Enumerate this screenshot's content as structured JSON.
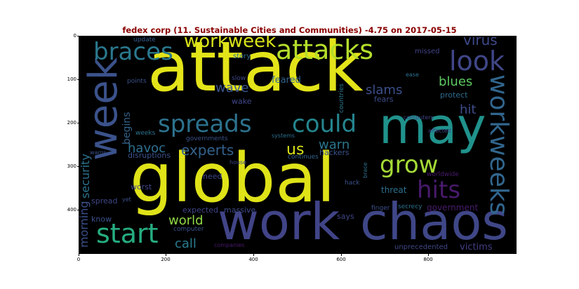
{
  "title": "fedex corp (11. Sustainable Cities and Communities) -4.75 on 2017-05-15",
  "axes": {
    "y_ticks": [
      "0",
      "100",
      "200",
      "300",
      "400"
    ],
    "x_ticks": [
      "0",
      "200",
      "400",
      "600",
      "800"
    ]
  },
  "words": [
    {
      "id": "attack",
      "text": "attack",
      "color": "#e3e419",
      "size": 98,
      "x": 210,
      "y": 47
    },
    {
      "id": "global",
      "text": "global",
      "color": "#dfe318",
      "size": 96,
      "x": 185,
      "y": 206
    },
    {
      "id": "may",
      "text": "may",
      "color": "#20928c",
      "size": 70,
      "x": 540,
      "y": 145
    },
    {
      "id": "chaos",
      "text": "chaos",
      "color": "#3f4788",
      "size": 72,
      "x": 513,
      "y": 280
    },
    {
      "id": "work",
      "text": "work",
      "color": "#414487",
      "size": 72,
      "x": 310,
      "y": 280
    },
    {
      "id": "week",
      "text": "week",
      "color": "#3b528b",
      "size": 56,
      "x": 120,
      "y": 95,
      "rot": -90
    },
    {
      "id": "attacks",
      "text": "attacks",
      "color": "#b5de2b",
      "size": 38,
      "x": 393,
      "y": 52
    },
    {
      "id": "braces",
      "text": "braces",
      "color": "#2a788e",
      "size": 34,
      "x": 133,
      "y": 57
    },
    {
      "id": "workweek",
      "text": "workweek",
      "color": "#d8e219",
      "size": 26,
      "x": 262,
      "y": 46
    },
    {
      "id": "look",
      "text": "look",
      "color": "#404688",
      "size": 38,
      "x": 640,
      "y": 68
    },
    {
      "id": "spreads",
      "text": "spreads",
      "color": "#2c728e",
      "size": 34,
      "x": 225,
      "y": 160
    },
    {
      "id": "could",
      "text": "could",
      "color": "#25858e",
      "size": 34,
      "x": 416,
      "y": 160
    },
    {
      "id": "workweeks",
      "text": "workweeks",
      "color": "#31668e",
      "size": 36,
      "x": 692,
      "y": 106,
      "rot": 90
    },
    {
      "id": "grow",
      "text": "grow",
      "color": "#a5db36",
      "size": 34,
      "x": 541,
      "y": 218
    },
    {
      "id": "hits",
      "text": "hits",
      "color": "#481a6c",
      "size": 34,
      "x": 594,
      "y": 254
    },
    {
      "id": "start",
      "text": "start",
      "color": "#26ad81",
      "size": 38,
      "x": 137,
      "y": 314
    },
    {
      "id": "virus",
      "text": "virus",
      "color": "#3e4a89",
      "size": 20,
      "x": 660,
      "y": 47
    },
    {
      "id": "blues",
      "text": "blues",
      "color": "#5ec962",
      "size": 18,
      "x": 625,
      "y": 108
    },
    {
      "id": "hit",
      "text": "hit",
      "color": "#3e4c8a",
      "size": 18,
      "x": 655,
      "y": 148
    },
    {
      "id": "wave",
      "text": "wave",
      "color": "#3a548c",
      "size": 18,
      "x": 307,
      "y": 117
    },
    {
      "id": "feared",
      "text": "feared",
      "color": "#32658e",
      "size": 13,
      "x": 387,
      "y": 108
    },
    {
      "id": "slams",
      "text": "slams",
      "color": "#3c4f8a",
      "size": 18,
      "x": 521,
      "y": 120
    },
    {
      "id": "protect",
      "text": "protect",
      "color": "#2f6b8e",
      "size": 11,
      "x": 627,
      "y": 130
    },
    {
      "id": "fears",
      "text": "fears",
      "color": "#3d4d8a",
      "size": 11,
      "x": 533,
      "y": 136
    },
    {
      "id": "experts",
      "text": "experts",
      "color": "#33628d",
      "size": 20,
      "x": 258,
      "y": 204
    },
    {
      "id": "us",
      "text": "us",
      "color": "#dae319",
      "size": 22,
      "x": 408,
      "y": 203
    },
    {
      "id": "warn",
      "text": "warn",
      "color": "#2b758e",
      "size": 18,
      "x": 454,
      "y": 198
    },
    {
      "id": "havoc",
      "text": "havoc",
      "color": "#2d708e",
      "size": 18,
      "x": 182,
      "y": 203
    },
    {
      "id": "hackers",
      "text": "hackers",
      "color": "#3a538b",
      "size": 11,
      "x": 455,
      "y": 212
    },
    {
      "id": "world",
      "text": "world",
      "color": "#8fd744",
      "size": 18,
      "x": 240,
      "y": 306
    },
    {
      "id": "call",
      "text": "call",
      "color": "#297b8e",
      "size": 18,
      "x": 249,
      "y": 339
    },
    {
      "id": "threat",
      "text": "threat",
      "color": "#2d708e",
      "size": 12,
      "x": 543,
      "y": 265
    },
    {
      "id": "government",
      "text": "government",
      "color": "#481b6d",
      "size": 12,
      "x": 608,
      "y": 290
    },
    {
      "id": "victims",
      "text": "victims",
      "color": "#433e85",
      "size": 13,
      "x": 655,
      "y": 346
    },
    {
      "id": "unprecedented",
      "text": "unprecedented",
      "color": "#3f4788",
      "size": 10,
      "x": 562,
      "y": 348
    },
    {
      "id": "security",
      "text": "security",
      "color": "#2c738e",
      "size": 16,
      "x": 114,
      "y": 206,
      "rot": -90
    },
    {
      "id": "morning",
      "text": "morning",
      "color": "#3b518b",
      "size": 16,
      "x": 112,
      "y": 286,
      "rot": -90
    },
    {
      "id": "begins",
      "text": "begins",
      "color": "#33638d",
      "size": 14,
      "x": 174,
      "y": 156,
      "rot": -90
    },
    {
      "id": "wake",
      "text": "wake",
      "color": "#3f4889",
      "size": 11,
      "x": 330,
      "y": 139
    },
    {
      "id": "story",
      "text": "story",
      "color": "#2c728e",
      "size": 10,
      "x": 332,
      "y": 76
    },
    {
      "id": "slow",
      "text": "slow",
      "color": "#3f4889",
      "size": 9,
      "x": 330,
      "y": 108
    },
    {
      "id": "update",
      "text": "update",
      "color": "#375a8c",
      "size": 9,
      "x": 190,
      "y": 53
    },
    {
      "id": "points",
      "text": "points",
      "color": "#3b528b",
      "size": 9,
      "x": 181,
      "y": 112
    },
    {
      "id": "missed",
      "text": "missed",
      "color": "#414487",
      "size": 10,
      "x": 591,
      "y": 69
    },
    {
      "id": "ease",
      "text": "ease",
      "color": "#2c728e",
      "size": 8,
      "x": 578,
      "y": 103
    },
    {
      "id": "countries",
      "text": "countries",
      "color": "#2a788e",
      "size": 9,
      "x": 483,
      "y": 112,
      "rot": -90
    },
    {
      "id": "computers",
      "text": "computers",
      "color": "#404387",
      "size": 8,
      "x": 575,
      "y": 164
    },
    {
      "id": "weeks",
      "text": "weeks",
      "color": "#2c728e",
      "size": 9,
      "x": 193,
      "y": 186
    },
    {
      "id": "systems",
      "text": "systems",
      "color": "#2c728e",
      "size": 8,
      "x": 387,
      "y": 190
    },
    {
      "id": "governments",
      "text": "governments",
      "color": "#3b528b",
      "size": 9,
      "x": 265,
      "y": 194
    },
    {
      "id": "affected",
      "text": "affected",
      "color": "#3f4889",
      "size": 8,
      "x": 610,
      "y": 183
    },
    {
      "id": "disruptions",
      "text": "disruptions",
      "color": "#3b528b",
      "size": 11,
      "x": 182,
      "y": 216
    },
    {
      "id": "continues",
      "text": "continues",
      "color": "#33638d",
      "size": 9,
      "x": 410,
      "y": 220
    },
    {
      "id": "warns",
      "text": "warns",
      "color": "#3b528b",
      "size": 8,
      "x": 128,
      "y": 214
    },
    {
      "id": "house",
      "text": "house",
      "color": "#3f4889",
      "size": 8,
      "x": 327,
      "y": 228
    },
    {
      "id": "need",
      "text": "need",
      "color": "#3f4889",
      "size": 11,
      "x": 289,
      "y": 246
    },
    {
      "id": "worst",
      "text": "worst",
      "color": "#404688",
      "size": 11,
      "x": 186,
      "y": 261
    },
    {
      "id": "hack",
      "text": "hack",
      "color": "#3b528b",
      "size": 9,
      "x": 491,
      "y": 257
    },
    {
      "id": "brace",
      "text": "brace",
      "color": "#2c728e",
      "size": 8,
      "x": 517,
      "y": 230,
      "rot": -90
    },
    {
      "id": "worldwide",
      "text": "worldwide",
      "color": "#481a6c",
      "size": 9,
      "x": 608,
      "y": 245
    },
    {
      "id": "spread",
      "text": "spread",
      "color": "#3f4788",
      "size": 11,
      "x": 130,
      "y": 281
    },
    {
      "id": "yet",
      "text": "yet",
      "color": "#3b528b",
      "size": 8,
      "x": 174,
      "y": 281
    },
    {
      "id": "know",
      "text": "know",
      "color": "#3b528b",
      "size": 11,
      "x": 130,
      "y": 307
    },
    {
      "id": "expected",
      "text": "expected",
      "color": "#414487",
      "size": 11,
      "x": 260,
      "y": 294
    },
    {
      "id": "massive",
      "text": "massive",
      "color": "#3e4a89",
      "size": 11,
      "x": 319,
      "y": 294
    },
    {
      "id": "says",
      "text": "says",
      "color": "#3f4889",
      "size": 11,
      "x": 480,
      "y": 303
    },
    {
      "id": "finger",
      "text": "finger",
      "color": "#3b528b",
      "size": 9,
      "x": 529,
      "y": 293
    },
    {
      "id": "secrecy",
      "text": "secrecy",
      "color": "#2c728e",
      "size": 9,
      "x": 567,
      "y": 291
    },
    {
      "id": "computer",
      "text": "computer",
      "color": "#3b528b",
      "size": 9,
      "x": 247,
      "y": 323
    },
    {
      "id": "companies",
      "text": "companies",
      "color": "#481a6c",
      "size": 8,
      "x": 305,
      "y": 346
    }
  ]
}
